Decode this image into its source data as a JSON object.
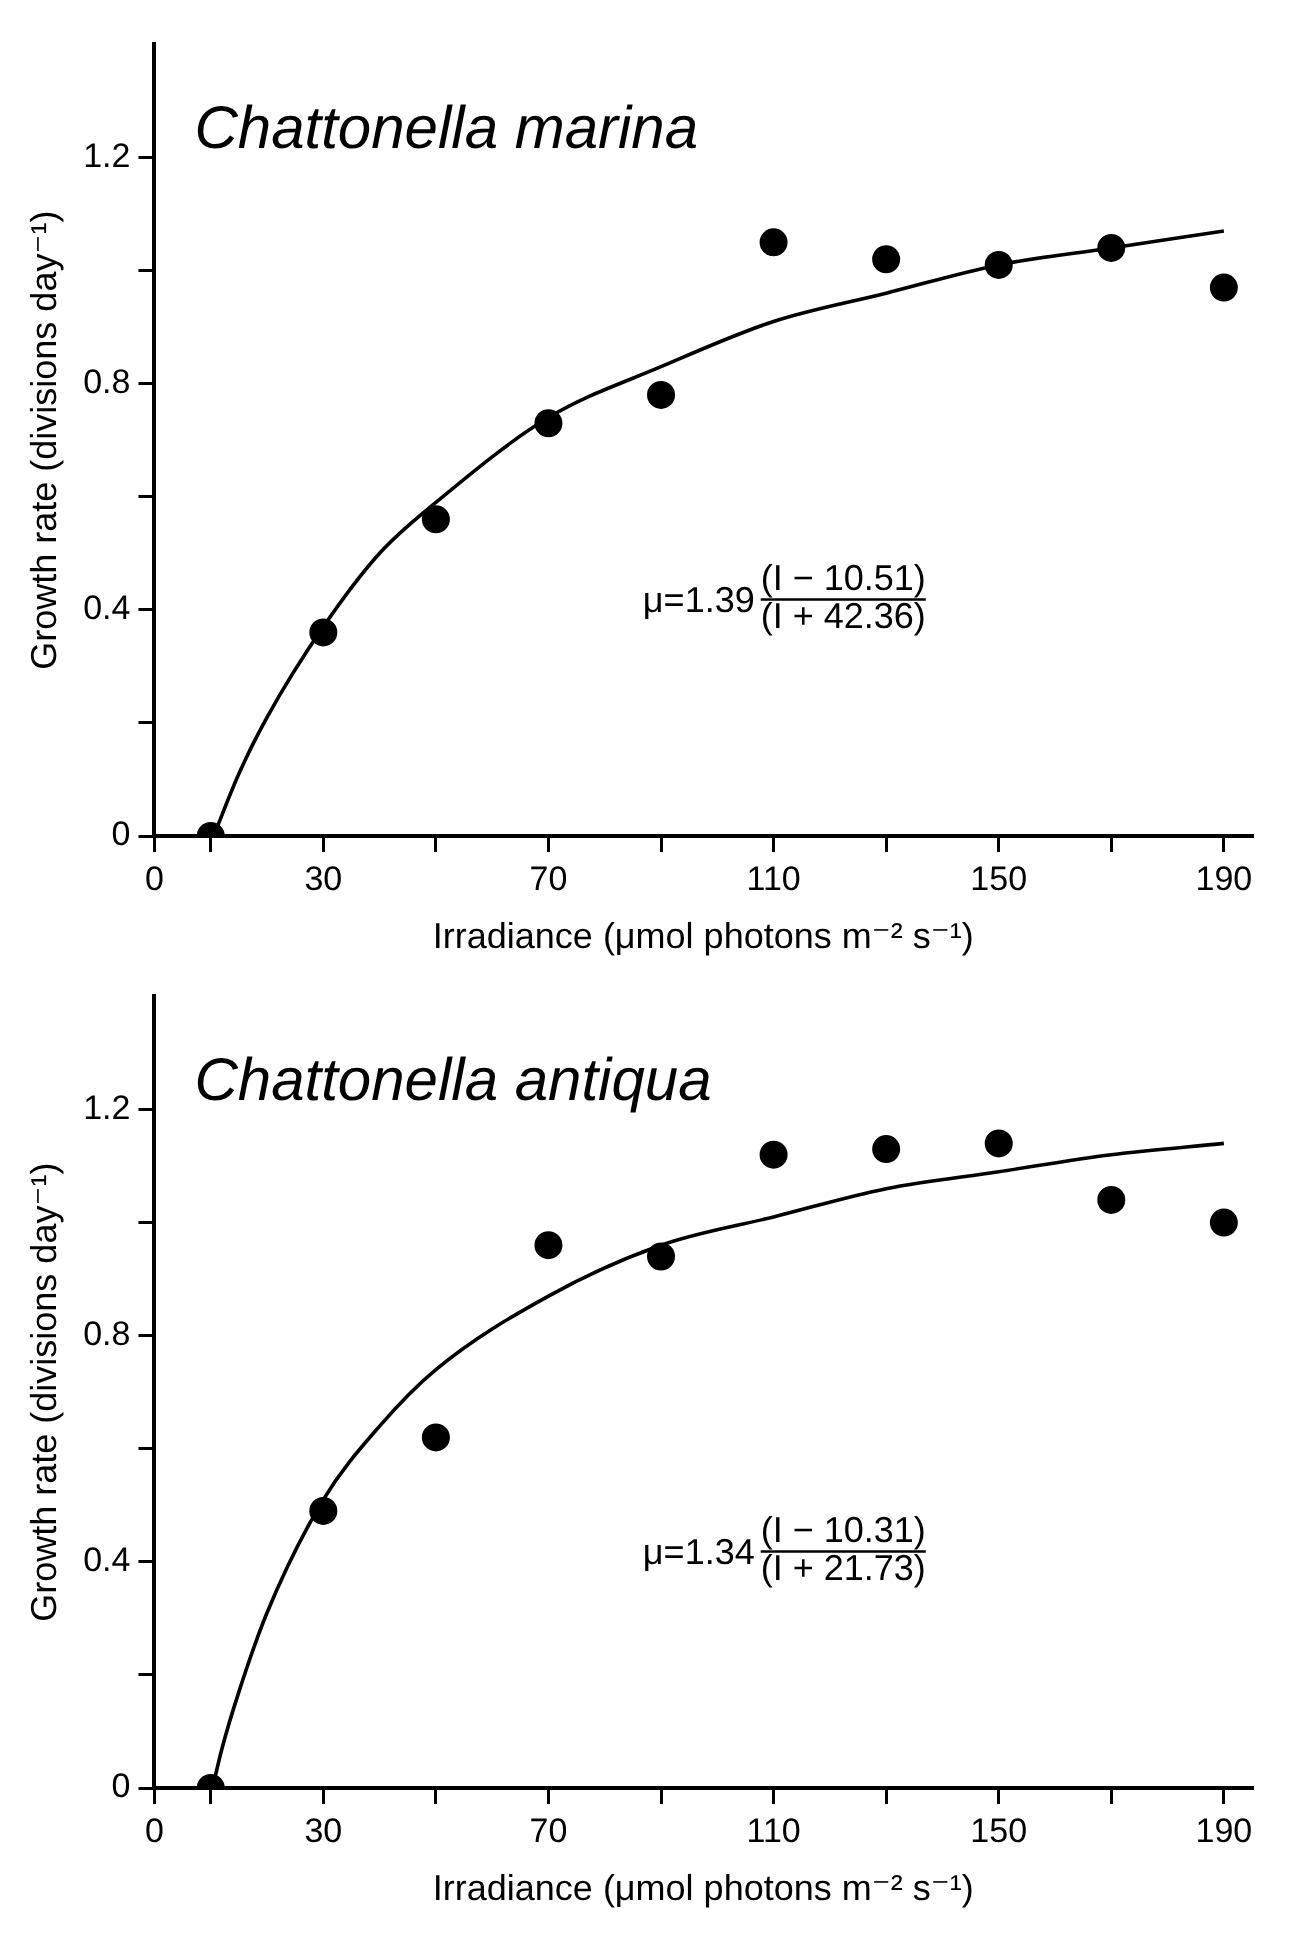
{
  "chart_data": [
    {
      "type": "scatter",
      "title": "Chattonella marina",
      "xlabel": "Irradiance (μmol photons m⁻² s⁻¹)",
      "ylabel": "Growth rate (divisions day⁻¹)",
      "annotations": [
        "μ=1.39",
        "(I − 10.51)",
        "(I + 42.36)"
      ],
      "xlim": [
        0,
        195
      ],
      "xticks": [
        0,
        {
          "value": 10,
          "label": null
        },
        30,
        {
          "value": 50,
          "label": null
        },
        70,
        {
          "value": 90,
          "label": null
        },
        110,
        {
          "value": 130,
          "label": null
        },
        150,
        {
          "value": 170,
          "label": null
        },
        190
      ],
      "ylim": [
        0,
        1.4
      ],
      "yticks": [
        0,
        {
          "value": 0.2,
          "label": null
        },
        0.4,
        {
          "value": 0.6,
          "label": null
        },
        0.8,
        {
          "value": 1.0,
          "label": null
        },
        1.2
      ],
      "grid": false,
      "legend": false,
      "marker": "circle",
      "series": [
        {
          "color": "#000000",
          "x": [
            10,
            30,
            50,
            70,
            90,
            110,
            130,
            150,
            170,
            190
          ],
          "values": [
            0,
            0.36,
            0.56,
            0.73,
            0.78,
            1.05,
            1.02,
            1.01,
            1.04,
            0.97
          ]
        },
        {
          "type": "line",
          "color": "#000000",
          "marker": "none",
          "x": [
            10.51,
            15,
            20,
            30,
            40,
            50,
            70,
            90,
            110,
            130,
            150,
            170,
            190
          ],
          "values": [
            0,
            0.11,
            0.21,
            0.37,
            0.5,
            0.59,
            0.74,
            0.83,
            0.91,
            0.96,
            1.01,
            1.04,
            1.07
          ]
        }
      ]
    },
    {
      "type": "scatter",
      "title": "Chattonella antiqua",
      "xlabel": "Irradiance (μmol photons m⁻² s⁻¹)",
      "ylabel": "Growth rate (divisions day⁻¹)",
      "annotations": [
        "μ=1.34",
        "(I − 10.31)",
        "(I + 21.73)"
      ],
      "xlim": [
        0,
        195
      ],
      "xticks": [
        0,
        {
          "value": 10,
          "label": null
        },
        30,
        {
          "value": 50,
          "label": null
        },
        70,
        {
          "value": 90,
          "label": null
        },
        110,
        {
          "value": 130,
          "label": null
        },
        150,
        {
          "value": 170,
          "label": null
        },
        190
      ],
      "ylim": [
        0,
        1.4
      ],
      "yticks": [
        0,
        {
          "value": 0.2,
          "label": null
        },
        0.4,
        {
          "value": 0.6,
          "label": null
        },
        0.8,
        {
          "value": 1.0,
          "label": null
        },
        1.2
      ],
      "grid": false,
      "legend": false,
      "marker": "circle",
      "series": [
        {
          "color": "#000000",
          "x": [
            10,
            30,
            50,
            70,
            90,
            110,
            130,
            150,
            170,
            190
          ],
          "values": [
            0,
            0.49,
            0.62,
            0.96,
            0.94,
            1.12,
            1.13,
            1.14,
            1.04,
            1.0
          ]
        },
        {
          "type": "line",
          "color": "#000000",
          "marker": "none",
          "x": [
            10.31,
            12,
            15,
            20,
            30,
            40,
            50,
            70,
            90,
            110,
            130,
            150,
            170,
            190
          ],
          "values": [
            0,
            0.07,
            0.17,
            0.31,
            0.51,
            0.64,
            0.74,
            0.87,
            0.96,
            1.01,
            1.06,
            1.09,
            1.12,
            1.14
          ]
        }
      ]
    }
  ]
}
